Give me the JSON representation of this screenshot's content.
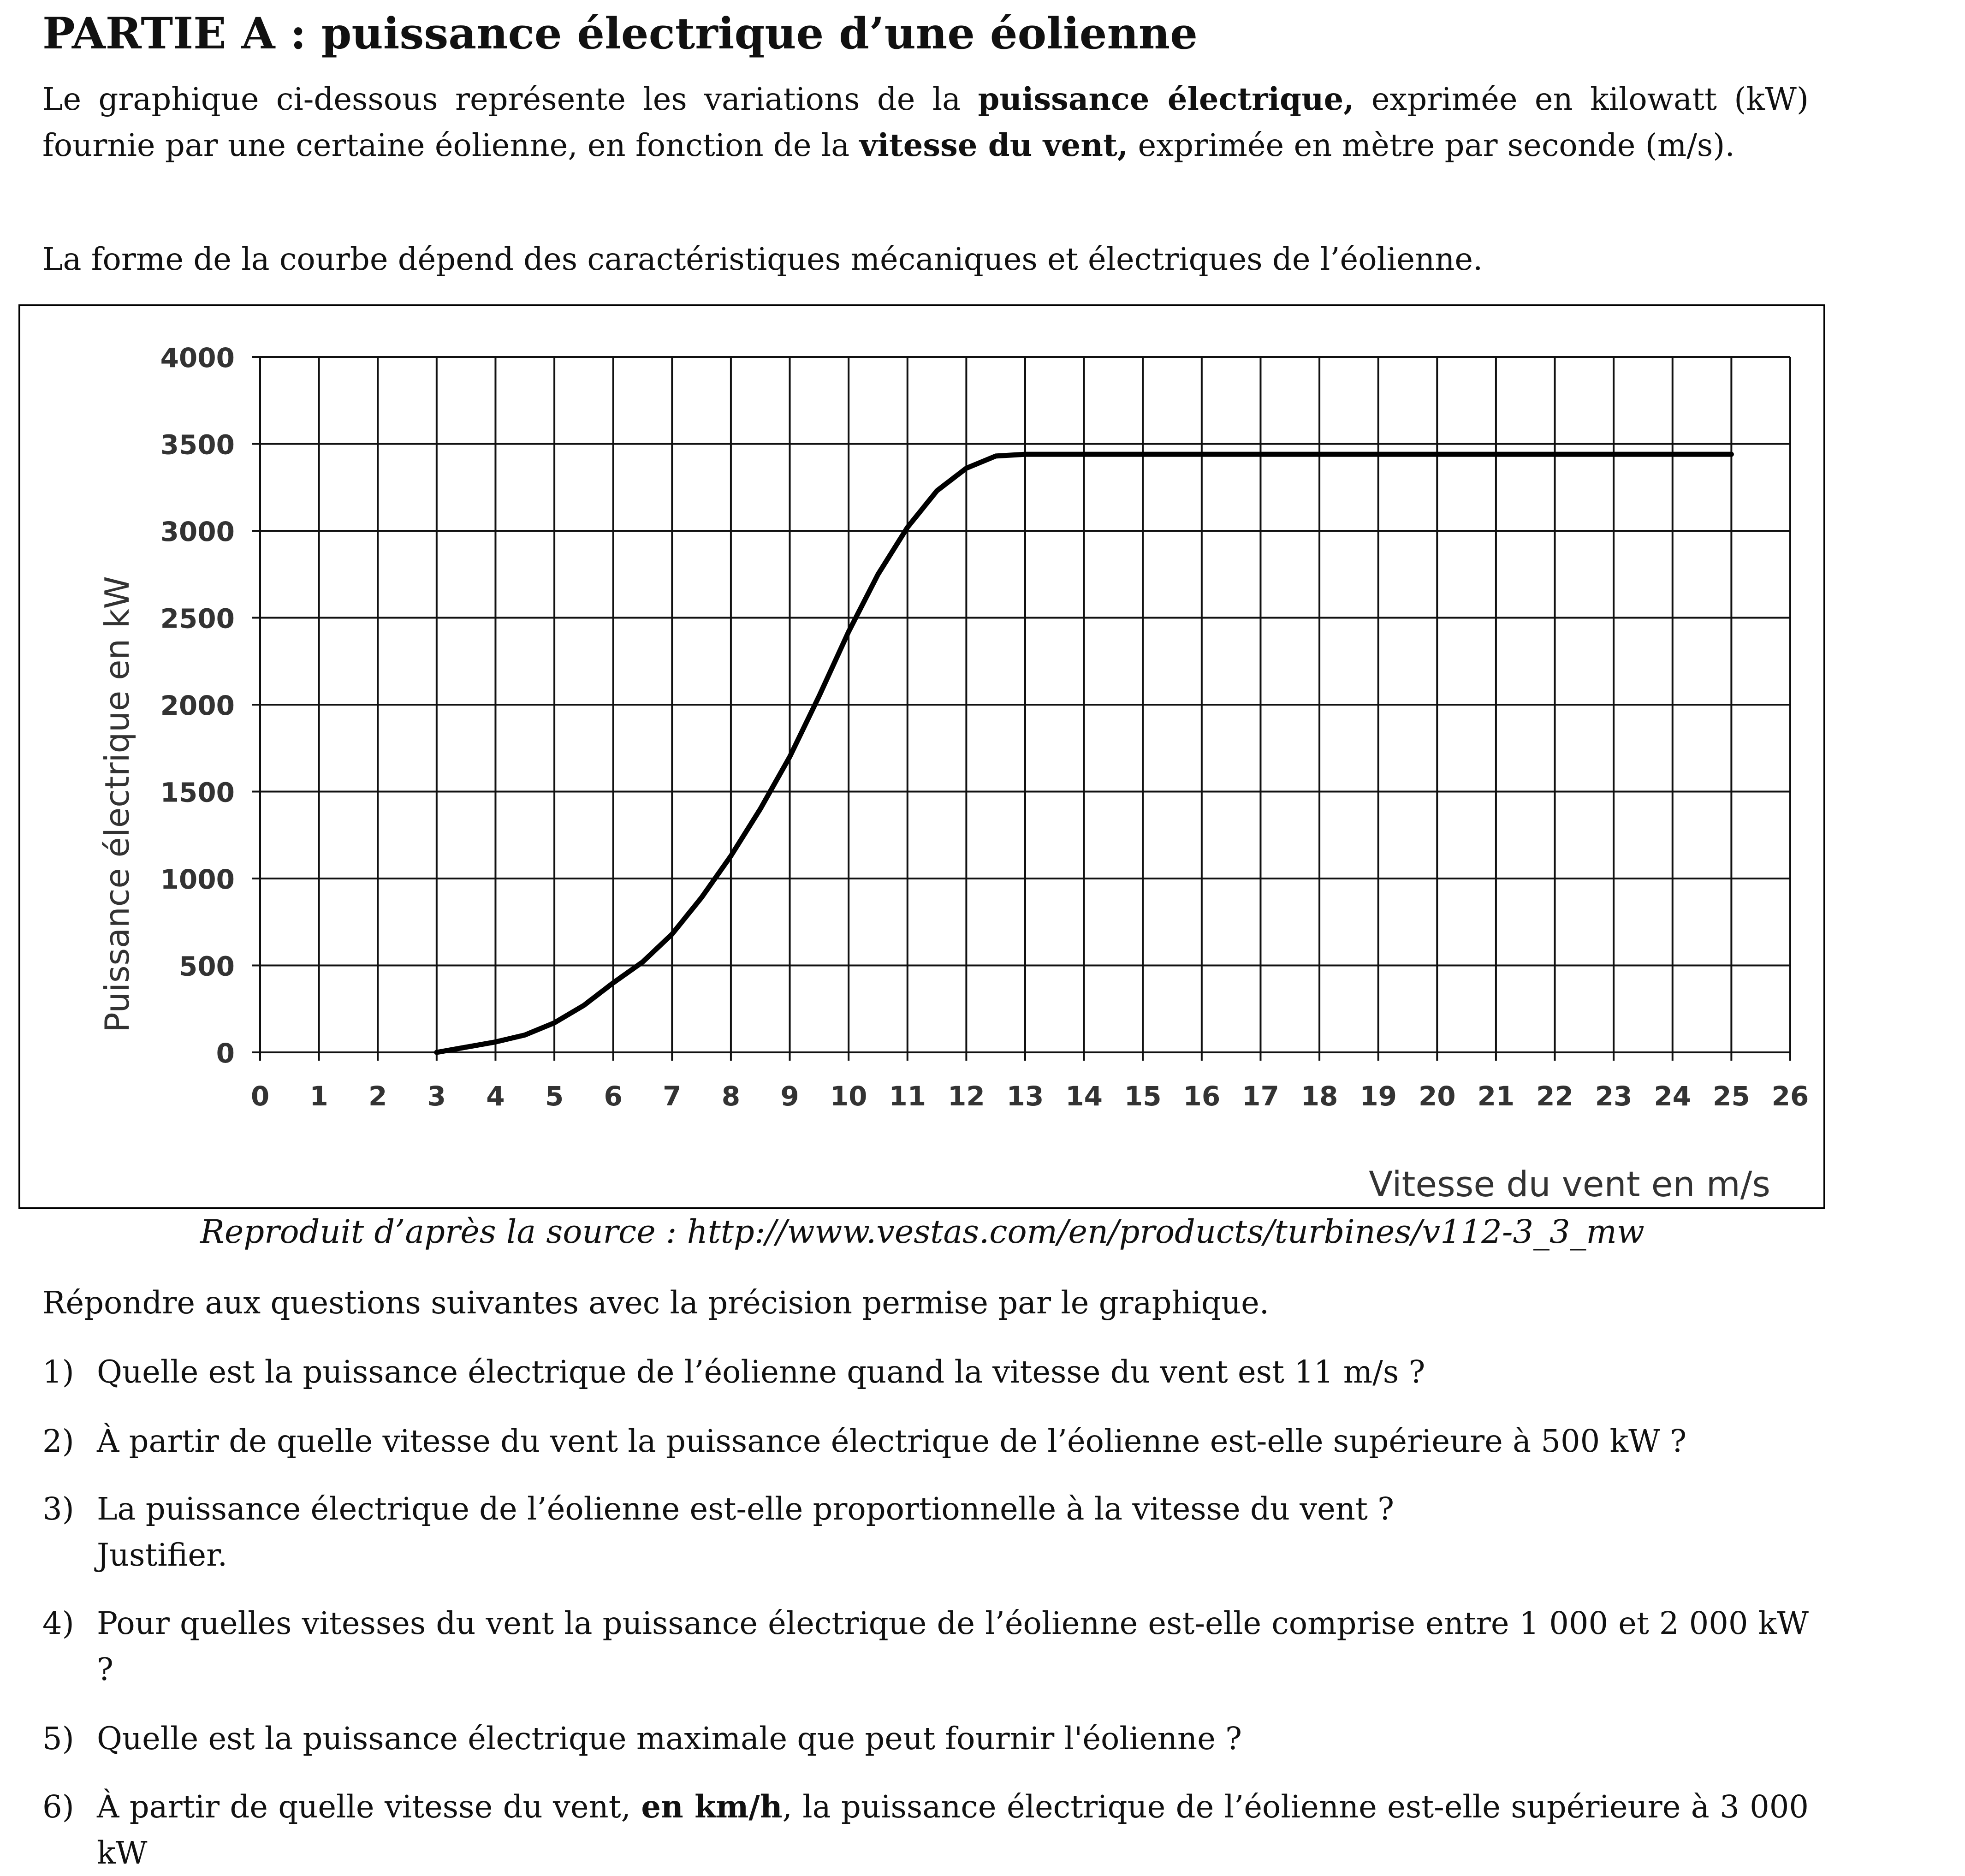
{
  "header": {
    "title": "PARTIE A : puissance électrique d’une éolienne"
  },
  "intro": {
    "p1_a": "Le graphique ci-dessous représente les variations de la ",
    "p1_b": "puissance électrique,",
    "p1_c": " exprimée en kilowatt (kW) fournie par une certaine éolienne, en fonction de la ",
    "p1_d": "vitesse du vent,",
    "p1_e": " exprimée en mètre par seconde (m/s).",
    "p2": "La forme de la courbe dépend des caractéristiques mécaniques et électriques de l’éolienne."
  },
  "chart_data": {
    "type": "line",
    "title": "",
    "xlabel": "Vitesse du vent en m/s",
    "ylabel": "Puissance électrique en kW",
    "xlim": [
      0,
      26
    ],
    "ylim": [
      0,
      4000
    ],
    "x_ticks": [
      0,
      1,
      2,
      3,
      4,
      5,
      6,
      7,
      8,
      9,
      10,
      11,
      12,
      13,
      14,
      15,
      16,
      17,
      18,
      19,
      20,
      21,
      22,
      23,
      24,
      25,
      26
    ],
    "y_ticks": [
      0,
      500,
      1000,
      1500,
      2000,
      2500,
      3000,
      3500,
      4000
    ],
    "grid": true,
    "series": [
      {
        "name": "",
        "x": [
          3,
          3.5,
          4,
          4.5,
          5,
          5.5,
          6,
          6.5,
          7,
          7.5,
          8,
          8.5,
          9,
          9.5,
          10,
          10.5,
          11,
          11.5,
          12,
          12.5,
          13,
          25
        ],
        "y": [
          0,
          30,
          60,
          100,
          170,
          270,
          400,
          520,
          680,
          890,
          1130,
          1400,
          1700,
          2050,
          2420,
          2750,
          3020,
          3230,
          3360,
          3430,
          3440,
          3440
        ]
      }
    ]
  },
  "caption": "Reproduit d’après la source : http://www.vestas.com/en/products/turbines/v112-3_3_mw",
  "instruction": "Répondre aux questions suivantes avec la précision permise par le graphique.",
  "questions": {
    "q1_num": "1)",
    "q1": "Quelle est la puissance électrique de l’éolienne quand la vitesse du vent est 11 m/s ?",
    "q2_num": "2)",
    "q2": "À partir de quelle vitesse du vent la puissance électrique de l’éolienne est-elle supérieure à 500 kW ?",
    "q3_num": "3)",
    "q3_a": "La puissance électrique de l’éolienne est-elle proportionnelle à la vitesse du vent ?",
    "q3_b": "Justifier.",
    "q4_num": "4)",
    "q4": "Pour quelles vitesses du vent la puissance électrique de l’éolienne est-elle comprise entre 1 000 et 2 000 kW ?",
    "q5_num": "5)",
    "q5": "Quelle est la puissance électrique maximale que peut fournir l'éolienne ?",
    "q6_num": "6)",
    "q6_a": "À partir de quelle vitesse du vent, ",
    "q6_b": "en km/h",
    "q6_c": ", la puissance électrique de l’éolienne est-elle supérieure à 3 000 kW"
  }
}
